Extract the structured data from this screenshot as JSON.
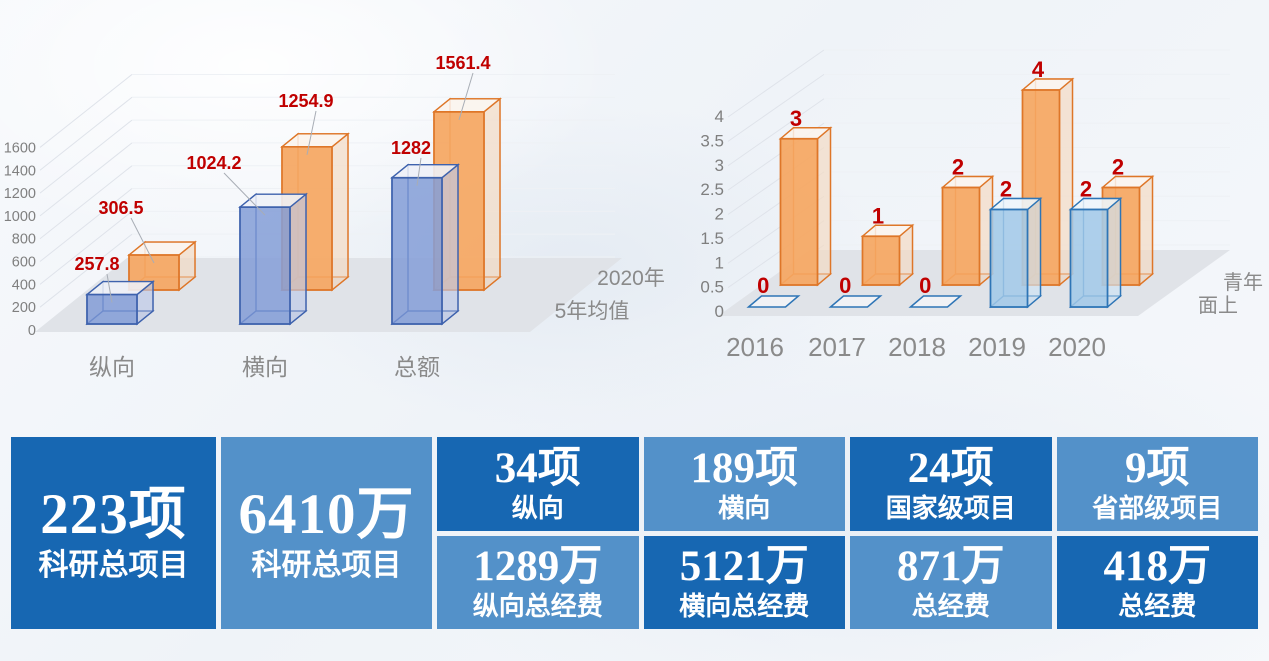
{
  "colors": {
    "banner_dark": "#1767B2",
    "banner_light": "#5391C9",
    "data_label_red": "#C00000",
    "floor_gray": "#E0E3E8",
    "axis_text_gray": "#7F7F7F",
    "bar_blue_left": "#3E62AD",
    "bar_blue_right": "#2E75B6",
    "bar_orange": "#DE7628"
  },
  "banner": {
    "big_cells": [
      {
        "value": "223项",
        "label": "科研总项目"
      },
      {
        "value": "6410万",
        "label": "科研总项目"
      }
    ],
    "cells": [
      {
        "value": "34项",
        "label": "纵向"
      },
      {
        "value": "189项",
        "label": "横向"
      },
      {
        "value": "24项",
        "label": "国家级项目"
      },
      {
        "value": "9项",
        "label": "省部级项目"
      },
      {
        "value": "1289万",
        "label": "纵向总经费"
      },
      {
        "value": "5121万",
        "label": "横向总经费"
      },
      {
        "value": "871万",
        "label": "总经费"
      },
      {
        "value": "418万",
        "label": "总经费"
      }
    ]
  },
  "chart_data": [
    {
      "type": "bar",
      "subtype": "3d-column",
      "title": "",
      "categories": [
        "纵向",
        "横向",
        "总额"
      ],
      "series": [
        {
          "name": "5年均值",
          "row": "front",
          "color": "#3E62AD",
          "values": [
            257.8,
            1024.2,
            1282
          ]
        },
        {
          "name": "2020年",
          "row": "back",
          "color": "#DE7628",
          "values": [
            306.5,
            1254.9,
            1561.4
          ]
        }
      ],
      "data_labels": [
        [
          257.8,
          1024.2,
          1282
        ],
        [
          306.5,
          1254.9,
          1561.4
        ]
      ],
      "data_label_color": "#C00000",
      "xlabel": "",
      "ylabel": "",
      "ylim": [
        0,
        1600
      ],
      "ytick_step": 200,
      "grid": true,
      "legend_position": "right-depth-axis"
    },
    {
      "type": "bar",
      "subtype": "3d-column",
      "title": "",
      "categories": [
        "2016",
        "2017",
        "2018",
        "2019",
        "2020"
      ],
      "series": [
        {
          "name": "面上",
          "row": "front",
          "color": "#2E75B6",
          "values": [
            0,
            0,
            0,
            2,
            2
          ]
        },
        {
          "name": "青年",
          "row": "back",
          "color": "#DE7628",
          "values": [
            3,
            1,
            2,
            4,
            2
          ]
        }
      ],
      "data_labels": [
        [
          0,
          0,
          0,
          2,
          2
        ],
        [
          3,
          1,
          2,
          4,
          2
        ]
      ],
      "data_label_color": "#C00000",
      "xlabel": "",
      "ylabel": "",
      "ylim": [
        0,
        4
      ],
      "ytick_step": 0.5,
      "grid": true,
      "legend_position": "right-depth-axis"
    }
  ]
}
